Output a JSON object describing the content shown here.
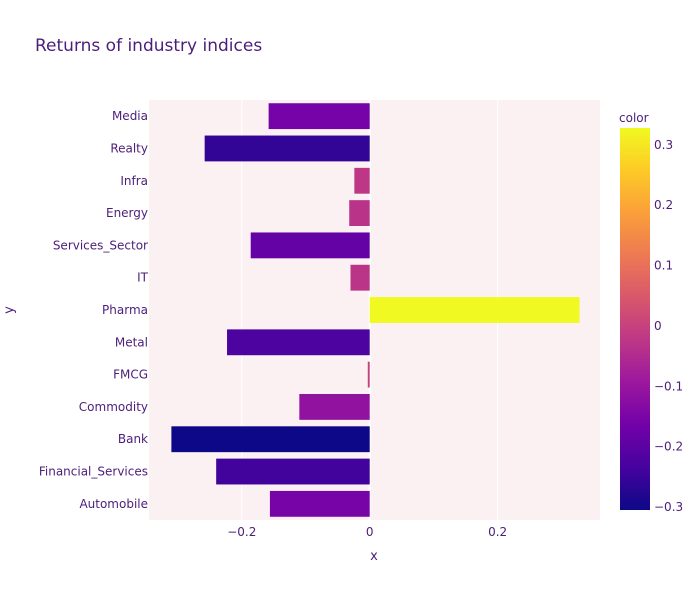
{
  "chart_data": {
    "type": "bar",
    "orientation": "horizontal",
    "title": "Returns of industry indices",
    "xlabel": "x",
    "ylabel": "y",
    "xlim": [
      -0.345,
      0.36
    ],
    "x_ticks": [
      -0.2,
      0,
      0.2
    ],
    "x_tick_labels": [
      "−0.2",
      "0",
      "0.2"
    ],
    "categories": [
      "Media",
      "Realty",
      "Infra",
      "Energy",
      "Services_Sector",
      "IT",
      "Pharma",
      "Metal",
      "FMCG",
      "Commodity",
      "Bank",
      "Financial_Services",
      "Automobile"
    ],
    "values": [
      -0.158,
      -0.258,
      -0.024,
      -0.032,
      -0.186,
      -0.03,
      0.328,
      -0.223,
      -0.003,
      -0.11,
      -0.31,
      -0.24,
      -0.156
    ],
    "colorbar": {
      "title": "color",
      "min": -0.305,
      "max": 0.328,
      "ticks": [
        0.3,
        0.2,
        0.1,
        0,
        -0.1,
        -0.2,
        -0.3
      ],
      "tick_labels": [
        "0.3",
        "0.2",
        "0.1",
        "0",
        "−0.1",
        "−0.2",
        "−0.3"
      ],
      "colorscale": [
        "#0d0887",
        "#46039f",
        "#7201a8",
        "#9c179e",
        "#bd3786",
        "#d8576b",
        "#ed7953",
        "#fb9f3a",
        "#fdca26",
        "#f0f921"
      ]
    },
    "plot_background": "#fbf1f3",
    "grid": true
  }
}
